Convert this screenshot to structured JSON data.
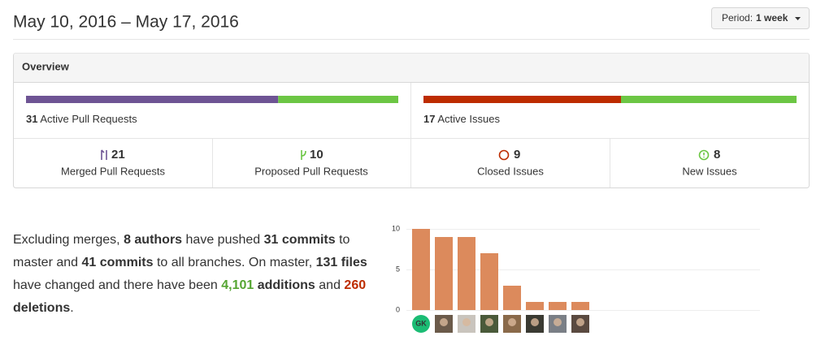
{
  "header": {
    "title": "May 10, 2016 – May 17, 2016",
    "period_label": "Period:",
    "period_value": "1 week"
  },
  "overview": {
    "title": "Overview",
    "pull_requests": {
      "count": "31",
      "label": "Active Pull Requests",
      "merged": 21,
      "merged_label": "Merged Pull Requests",
      "proposed": 10,
      "proposed_label": "Proposed Pull Requests"
    },
    "issues": {
      "count": "17",
      "label": "Active Issues",
      "closed": 9,
      "closed_label": "Closed Issues",
      "new": 8,
      "new_label": "New Issues"
    }
  },
  "summary": [
    "Excluding merges, ",
    "8 authors",
    " have pushed ",
    "31 commits",
    " to master and ",
    "41 commits",
    " to all branches. On master, ",
    "131 files",
    " have changed and there have been ",
    "4,101",
    " ",
    "additions",
    " and ",
    "260",
    " ",
    "deletions",
    "."
  ],
  "chart_data": {
    "type": "bar",
    "categories": [
      "GK",
      null,
      null,
      null,
      null,
      null,
      null,
      null
    ],
    "values": [
      10,
      9,
      9,
      7,
      3,
      1,
      1,
      1
    ],
    "color": "#dc8a5c",
    "ylim": [
      0,
      10
    ],
    "yticks": [
      0,
      5,
      10
    ],
    "grid": true
  }
}
